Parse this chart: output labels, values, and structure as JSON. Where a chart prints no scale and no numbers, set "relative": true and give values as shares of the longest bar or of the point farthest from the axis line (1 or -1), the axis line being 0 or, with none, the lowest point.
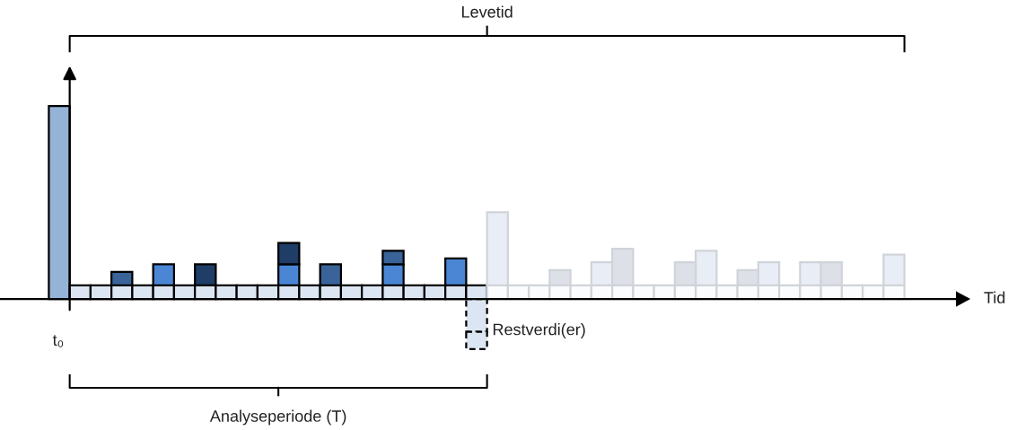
{
  "chart_data": {
    "type": "bar",
    "relative": true,
    "stacked": true,
    "legend": false,
    "annotations": [
      "Levetid",
      "Analyseperiode (T)",
      "Restverdi(er)",
      "t₀",
      "Tid"
    ],
    "categories": [
      null,
      null,
      null,
      null,
      null,
      null,
      null,
      null,
      null,
      null,
      null,
      null,
      null,
      null,
      null,
      null,
      null,
      null,
      null,
      null,
      null,
      null,
      null,
      null,
      null,
      null,
      null,
      null,
      null,
      null,
      null,
      null,
      null,
      null,
      null,
      null,
      null,
      null,
      null,
      null,
      null
    ],
    "series": [
      {
        "color": "#95b3d7",
        "values": [
          1,
          null,
          null,
          null,
          null,
          null,
          null,
          null,
          null,
          null,
          null,
          null,
          null,
          null,
          null,
          null,
          null,
          null,
          null,
          null,
          null,
          null,
          null,
          null,
          null,
          null,
          null,
          null,
          null,
          null,
          null,
          null,
          null,
          null,
          null,
          null,
          null,
          null,
          null,
          null,
          null
        ]
      },
      {
        "color": "#dce6f2",
        "values": [
          null,
          0.07,
          0.07,
          0.07,
          0.07,
          0.07,
          0.07,
          0.07,
          0.07,
          0.07,
          0.07,
          0.07,
          0.07,
          0.07,
          0.07,
          0.07,
          0.07,
          0.07,
          0.07,
          0.07,
          0.07,
          null,
          null,
          null,
          null,
          null,
          null,
          null,
          null,
          null,
          null,
          null,
          null,
          null,
          null,
          null,
          null,
          null,
          null,
          null,
          null
        ]
      },
      {
        "color": "#fbfcfd",
        "values": [
          null,
          null,
          null,
          null,
          null,
          null,
          null,
          null,
          null,
          null,
          null,
          null,
          null,
          null,
          null,
          null,
          null,
          null,
          null,
          null,
          null,
          0.07,
          0.07,
          0.07,
          0.07,
          0.07,
          0.07,
          0.07,
          0.07,
          0.07,
          0.07,
          0.07,
          0.07,
          0.07,
          0.07,
          0.07,
          0.07,
          0.07,
          0.07,
          0.07,
          0.07
        ]
      },
      {
        "color": "#4a86d4",
        "values": [
          null,
          null,
          null,
          null,
          null,
          0.11,
          null,
          null,
          null,
          null,
          null,
          0.11,
          null,
          null,
          null,
          null,
          0.11,
          null,
          null,
          0.14,
          null,
          null,
          null,
          null,
          null,
          null,
          null,
          null,
          null,
          null,
          null,
          null,
          null,
          null,
          null,
          null,
          null,
          null,
          null,
          null,
          null
        ]
      },
      {
        "color": "#3a6399",
        "values": [
          null,
          null,
          null,
          0.07,
          null,
          null,
          null,
          null,
          null,
          null,
          null,
          null,
          null,
          0.11,
          null,
          null,
          0.07,
          null,
          null,
          null,
          null,
          null,
          null,
          null,
          null,
          null,
          null,
          null,
          null,
          null,
          null,
          null,
          null,
          null,
          null,
          null,
          null,
          null,
          null,
          null,
          null
        ]
      },
      {
        "color": "#1f3d66",
        "values": [
          null,
          null,
          null,
          null,
          null,
          null,
          null,
          0.11,
          null,
          null,
          null,
          0.11,
          null,
          null,
          null,
          null,
          null,
          null,
          null,
          null,
          null,
          null,
          null,
          null,
          null,
          null,
          null,
          null,
          null,
          null,
          null,
          null,
          null,
          null,
          null,
          null,
          null,
          null,
          null,
          null,
          null
        ]
      },
      {
        "color": "#e9eef6",
        "values": [
          null,
          null,
          null,
          null,
          null,
          null,
          null,
          null,
          null,
          null,
          null,
          null,
          null,
          null,
          null,
          null,
          null,
          null,
          null,
          null,
          null,
          0.38,
          null,
          null,
          null,
          null,
          0.12,
          null,
          null,
          null,
          null,
          0.18,
          null,
          null,
          0.12,
          null,
          0.12,
          null,
          null,
          null,
          0.16
        ]
      },
      {
        "color": "#dde0e6",
        "values": [
          null,
          null,
          null,
          null,
          null,
          null,
          null,
          null,
          null,
          null,
          null,
          null,
          null,
          null,
          null,
          null,
          null,
          null,
          null,
          null,
          null,
          null,
          null,
          null,
          0.08,
          null,
          null,
          0.19,
          null,
          null,
          0.12,
          null,
          null,
          0.08,
          null,
          null,
          null,
          0.12,
          null,
          null,
          null
        ]
      },
      {
        "color": "#dce6f2",
        "line_style": "dashed",
        "values": [
          null,
          null,
          null,
          null,
          null,
          null,
          null,
          null,
          null,
          null,
          null,
          null,
          null,
          null,
          null,
          null,
          null,
          null,
          null,
          null,
          -0.17,
          null,
          null,
          null,
          null,
          null,
          null,
          null,
          null,
          null,
          null,
          null,
          null,
          null,
          null,
          null,
          null,
          null,
          null,
          null,
          null
        ]
      },
      {
        "color": "#dce6f2",
        "line_style": "dashed",
        "values": [
          null,
          null,
          null,
          null,
          null,
          null,
          null,
          null,
          null,
          null,
          null,
          null,
          null,
          null,
          null,
          null,
          null,
          null,
          null,
          null,
          -0.09,
          null,
          null,
          null,
          null,
          null,
          null,
          null,
          null,
          null,
          null,
          null,
          null,
          null,
          null,
          null,
          null,
          null,
          null,
          null,
          null
        ]
      }
    ]
  }
}
